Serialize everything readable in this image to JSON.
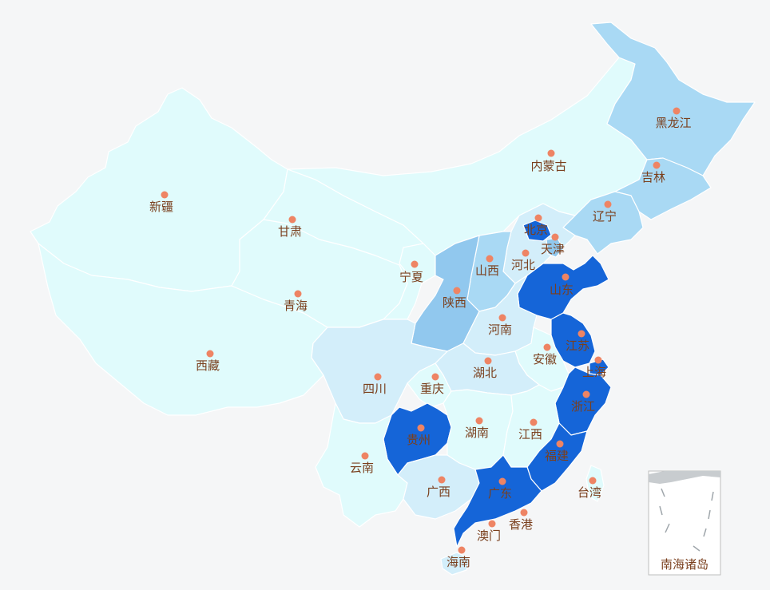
{
  "map": {
    "provinces": [
      {
        "key": "heilongjiang",
        "name": "黑龙江",
        "level": 2
      },
      {
        "key": "jilin",
        "name": "吉林",
        "level": 2
      },
      {
        "key": "liaoning",
        "name": "辽宁",
        "level": 2
      },
      {
        "key": "neimenggu",
        "name": "内蒙古",
        "level": 0
      },
      {
        "key": "xinjiang",
        "name": "新疆",
        "level": 0
      },
      {
        "key": "gansu",
        "name": "甘肃",
        "level": 0
      },
      {
        "key": "qinghai",
        "name": "青海",
        "level": 0
      },
      {
        "key": "xizang",
        "name": "西藏",
        "level": 0
      },
      {
        "key": "ningxia",
        "name": "宁夏",
        "level": 0
      },
      {
        "key": "beijing",
        "name": "北京",
        "level": 4
      },
      {
        "key": "tianjin",
        "name": "天津",
        "level": 3
      },
      {
        "key": "hebei",
        "name": "河北",
        "level": 1
      },
      {
        "key": "shanxi",
        "name": "山西",
        "level": 2
      },
      {
        "key": "shandong",
        "name": "山东",
        "level": 4
      },
      {
        "key": "shaanxi",
        "name": "陕西",
        "level": 3
      },
      {
        "key": "henan",
        "name": "河南",
        "level": 1
      },
      {
        "key": "jiangsu",
        "name": "江苏",
        "level": 4
      },
      {
        "key": "anhui",
        "name": "安徽",
        "level": 0
      },
      {
        "key": "shanghai",
        "name": "上海",
        "level": 4
      },
      {
        "key": "hubei",
        "name": "湖北",
        "level": 1
      },
      {
        "key": "sichuan",
        "name": "四川",
        "level": 1
      },
      {
        "key": "chongqing",
        "name": "重庆",
        "level": 0
      },
      {
        "key": "zhejiang",
        "name": "浙江",
        "level": 4
      },
      {
        "key": "guizhou",
        "name": "贵州",
        "level": 4
      },
      {
        "key": "hunan",
        "name": "湖南",
        "level": 0
      },
      {
        "key": "jiangxi",
        "name": "江西",
        "level": 0
      },
      {
        "key": "fujian",
        "name": "福建",
        "level": 4
      },
      {
        "key": "yunnan",
        "name": "云南",
        "level": 0
      },
      {
        "key": "guangxi",
        "name": "广西",
        "level": 1
      },
      {
        "key": "guangdong",
        "name": "广东",
        "level": 4
      },
      {
        "key": "taiwan",
        "name": "台湾",
        "level": 0
      },
      {
        "key": "xianggang",
        "name": "香港",
        "level": 0
      },
      {
        "key": "aomen",
        "name": "澳门",
        "level": 0
      },
      {
        "key": "hainan",
        "name": "海南",
        "level": 1
      }
    ],
    "inset_label": "南海诸岛"
  }
}
